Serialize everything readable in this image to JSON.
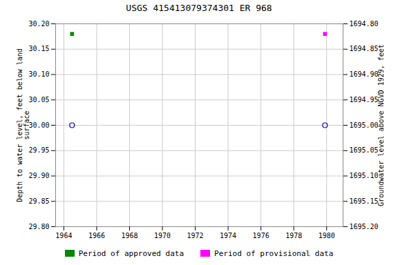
{
  "chart_data": {
    "type": "scatter",
    "title": "USGS 415413079374301 ER   968",
    "ylabel": "Depth to water level, feet below land\nsurface",
    "y2label": "Groundwater level above NGVD 1929, feet",
    "xlim": [
      1963.5,
      1981.0
    ],
    "xticks": [
      1964,
      1966,
      1968,
      1970,
      1972,
      1974,
      1976,
      1978,
      1980
    ],
    "ylim": [
      29.8,
      30.2
    ],
    "yticks": [
      {
        "value": 29.8,
        "label": "29.80"
      },
      29.85,
      {
        "value": 29.9,
        "label": "29.90"
      },
      29.95,
      {
        "value": 30.0,
        "label": "30.00"
      },
      30.05,
      {
        "value": 30.1,
        "label": "30.10"
      },
      30.15,
      {
        "value": 30.2,
        "label": "30.20"
      }
    ],
    "y2lim": [
      1695.2,
      1694.8
    ],
    "y2ticks": [
      {
        "value": 1695.2,
        "label": "1695.20"
      },
      1695.15,
      {
        "value": 1695.1,
        "label": "1695.10"
      },
      1695.05,
      {
        "value": 1695.0,
        "label": "1695.00"
      },
      1694.95,
      {
        "value": 1694.9,
        "label": "1694.90"
      },
      1694.85,
      {
        "value": 1694.8,
        "label": "1694.80"
      }
    ],
    "grid": true,
    "legend": "bottom",
    "series": [
      {
        "name": "Period of approved data",
        "color": "#008800",
        "marker": "square",
        "x": [
          1964.5
        ],
        "values": [
          30.18
        ]
      },
      {
        "name": "Period of provisional data",
        "color": "#ff00ff",
        "marker": "square",
        "x": [
          1979.9
        ],
        "values": [
          30.18
        ]
      },
      {
        "color": "#0000bb",
        "marker": "circle",
        "x": [
          1964.5,
          1979.9
        ],
        "values": [
          30.0,
          30.0
        ]
      }
    ]
  }
}
